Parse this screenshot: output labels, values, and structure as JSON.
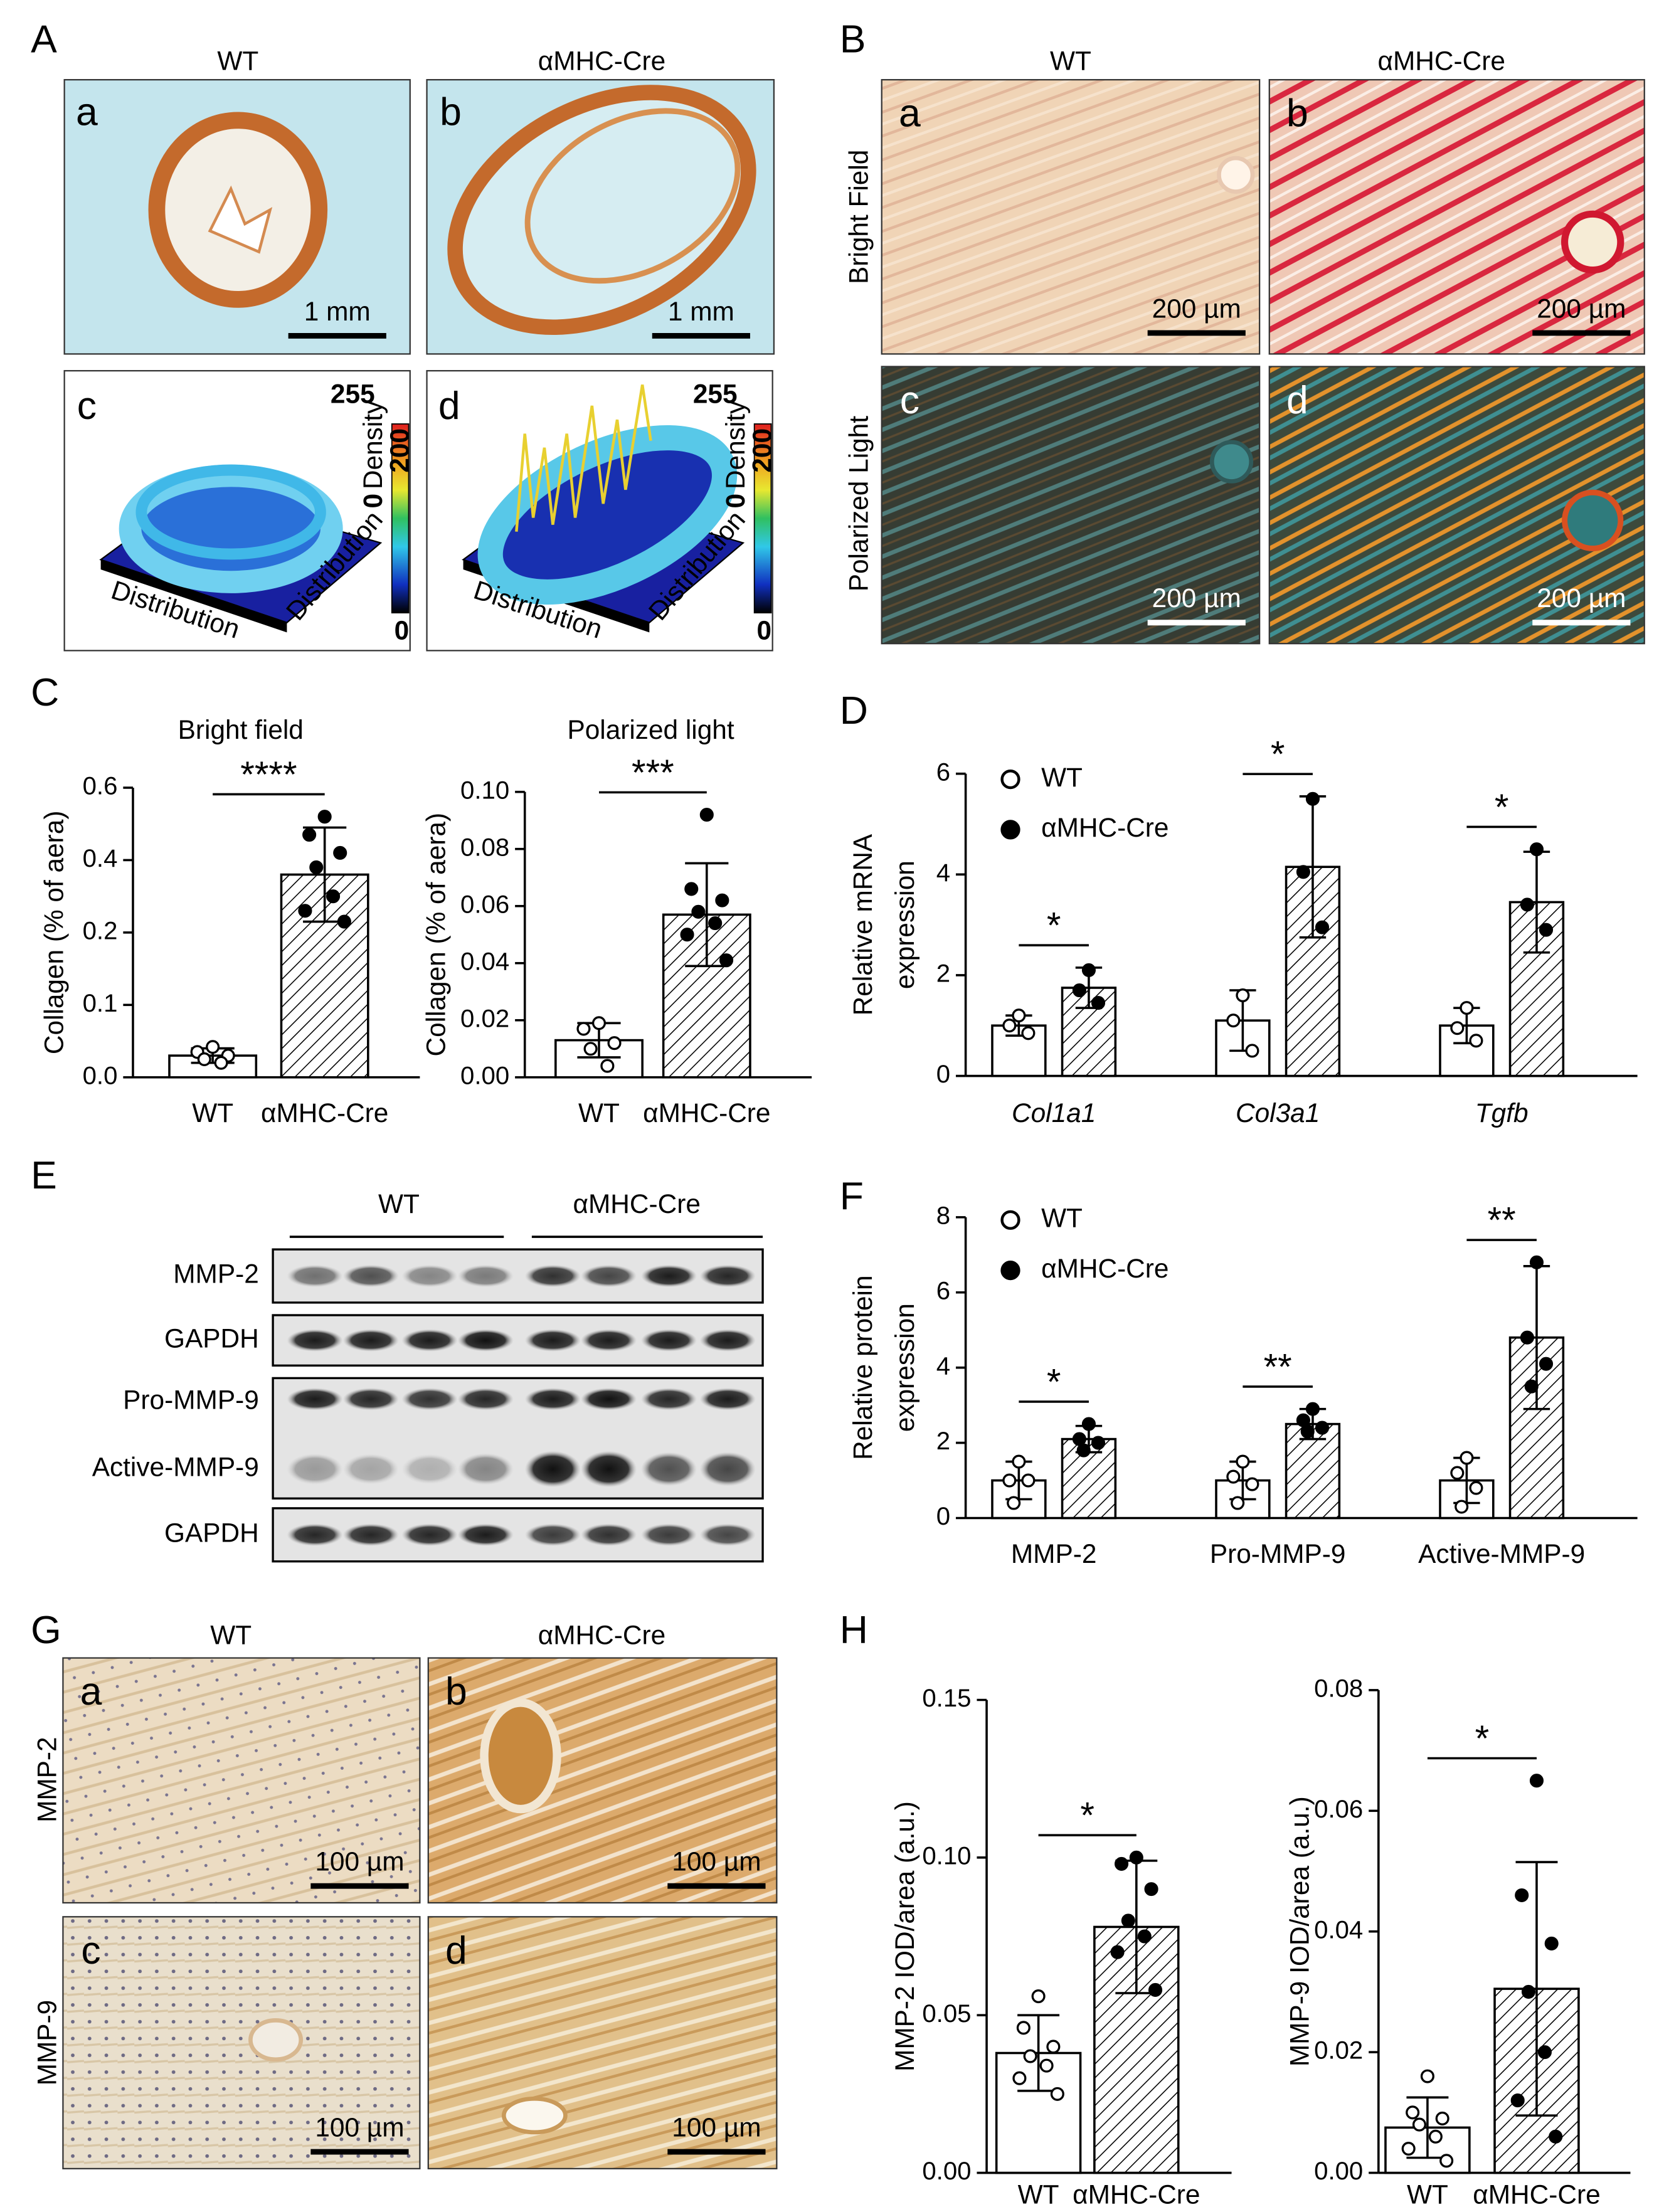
{
  "figure": {
    "panel_labels": [
      "A",
      "B",
      "C",
      "D",
      "E",
      "F",
      "G",
      "H"
    ],
    "A": {
      "columns": [
        "WT",
        "αMHC-Cre"
      ],
      "sublabels": [
        "a",
        "b",
        "c",
        "d"
      ],
      "scale_bar": "1 mm",
      "plot_texts": {
        "max": "255",
        "axis": "Density",
        "bar_max": "200",
        "axis_zero": "0",
        "bar_zero": "0",
        "x_axis": "Distribution",
        "z_axis": "Distribution"
      }
    },
    "B": {
      "columns": [
        "WT",
        "αMHC-Cre"
      ],
      "rows": [
        "Bright Field",
        "Polarized Light"
      ],
      "sublabels": [
        "a",
        "b",
        "c",
        "d"
      ],
      "scale_bar": "200 µm"
    },
    "E": {
      "groups": [
        "WT",
        "αMHC-Cre"
      ],
      "rows": [
        "MMP-2",
        "GAPDH",
        "Pro-MMP-9",
        "Active-MMP-9",
        "GAPDH"
      ]
    },
    "G": {
      "columns": [
        "WT",
        "αMHC-Cre"
      ],
      "rows": [
        "MMP-2",
        "MMP-9"
      ],
      "sublabels": [
        "a",
        "b",
        "c",
        "d"
      ],
      "scale_bar": "100 µm"
    }
  },
  "chart_data": [
    {
      "type": "bar",
      "title": "Bright field",
      "y_label": "Collagen (% of aera)",
      "categories": [
        "WT",
        "αMHC-Cre"
      ],
      "values": [
        0.03,
        0.36
      ],
      "errors": [
        0.01,
        0.13
      ],
      "points": [
        [
          0.042,
          0.035,
          0.03,
          0.025,
          0.02
        ],
        [
          0.52,
          0.47,
          0.42,
          0.38,
          0.3,
          0.26,
          0.23
        ]
      ],
      "styles": [
        "open",
        "hatched"
      ],
      "significance": "****",
      "ylim": [
        0,
        0.6
      ],
      "yticks": [
        {
          "value": 0,
          "label": "0.0"
        },
        0.1,
        0.2,
        0.4,
        0.6
      ],
      "yscale": "segmented"
    },
    {
      "type": "bar",
      "title": "Polarized light",
      "y_label": "Collagen (% of aera)",
      "categories": [
        "WT",
        "αMHC-Cre"
      ],
      "values": [
        0.013,
        0.057
      ],
      "errors": [
        0.006,
        0.018
      ],
      "points": [
        [
          0.019,
          0.017,
          0.012,
          0.01,
          0.004
        ],
        [
          0.092,
          0.066,
          0.062,
          0.058,
          0.054,
          0.05,
          0.041
        ]
      ],
      "styles": [
        "open",
        "hatched"
      ],
      "significance": "***",
      "ylim": [
        0,
        0.1
      ],
      "yticks": [
        {
          "value": 0,
          "label": "0.00"
        },
        0.02,
        0.04,
        0.06,
        0.08,
        {
          "value": 0.1,
          "label": "0.10"
        }
      ]
    },
    {
      "type": "bar",
      "y_label": [
        "Relative mRNA",
        "expression"
      ],
      "categories": [
        "Col1a1",
        "Col3a1",
        "Tgfb"
      ],
      "category_style": "italic",
      "series": [
        {
          "name": "WT",
          "style": "open",
          "values": [
            1,
            1.1,
            1
          ],
          "errors": [
            0.2,
            0.6,
            0.35
          ],
          "points": [
            [
              1.2,
              1.0,
              0.85
            ],
            [
              1.6,
              1.1,
              0.5
            ],
            [
              1.35,
              0.95,
              0.7
            ]
          ]
        },
        {
          "name": "αMHC-Cre",
          "style": "hatched",
          "values": [
            1.75,
            4.15,
            3.45
          ],
          "errors": [
            0.4,
            1.4,
            1.0
          ],
          "points": [
            [
              2.1,
              1.7,
              1.45
            ],
            [
              5.5,
              4.05,
              2.95
            ],
            [
              4.5,
              3.4,
              2.9
            ]
          ]
        }
      ],
      "significance": [
        "*",
        "*",
        "*"
      ],
      "ylim": [
        0,
        6
      ],
      "yticks": [
        0,
        2,
        4,
        6
      ]
    },
    {
      "type": "bar",
      "y_label": [
        "Relative protein",
        "expression"
      ],
      "categories": [
        "MMP-2",
        "Pro-MMP-9",
        "Active-MMP-9"
      ],
      "series": [
        {
          "name": "WT",
          "style": "open",
          "values": [
            1,
            1,
            1
          ],
          "errors": [
            0.5,
            0.5,
            0.6
          ],
          "points": [
            [
              1.5,
              1.0,
              1.0,
              0.4
            ],
            [
              1.5,
              1.1,
              0.9,
              0.4
            ],
            [
              1.6,
              1.2,
              0.8,
              0.3
            ]
          ]
        },
        {
          "name": "αMHC-Cre",
          "style": "hatched",
          "values": [
            2.1,
            2.5,
            4.8
          ],
          "errors": [
            0.35,
            0.4,
            1.9
          ],
          "points": [
            [
              2.5,
              2.1,
              2.0,
              1.8
            ],
            [
              2.9,
              2.6,
              2.4,
              2.3
            ],
            [
              6.8,
              4.8,
              4.1,
              3.5
            ]
          ]
        }
      ],
      "significance": [
        "*",
        "**",
        "**"
      ],
      "ylim": [
        0,
        8
      ],
      "yticks": [
        0,
        2,
        4,
        6,
        8
      ]
    },
    {
      "type": "bar",
      "y_label": "MMP-2 IOD/area (a.u.)",
      "categories": [
        "WT",
        "αMHC-Cre"
      ],
      "values": [
        0.038,
        0.078
      ],
      "errors": [
        0.012,
        0.021
      ],
      "points": [
        [
          0.056,
          0.046,
          0.04,
          0.037,
          0.034,
          0.03,
          0.025
        ],
        [
          0.1,
          0.098,
          0.09,
          0.08,
          0.075,
          0.07,
          0.058
        ]
      ],
      "styles": [
        "open",
        "hatched"
      ],
      "significance": "*",
      "ylim": [
        0,
        0.15
      ],
      "yticks": [
        {
          "value": 0,
          "label": "0.00"
        },
        0.05,
        {
          "value": 0.1,
          "label": "0.10"
        },
        0.15
      ]
    },
    {
      "type": "bar",
      "y_label": "MMP-9 IOD/area (a.u.)",
      "categories": [
        "WT",
        "αMHC-Cre"
      ],
      "values": [
        0.0075,
        0.0305
      ],
      "errors": [
        0.005,
        0.021
      ],
      "points": [
        [
          0.016,
          0.01,
          0.009,
          0.008,
          0.006,
          0.004,
          0.002
        ],
        [
          0.065,
          0.046,
          0.038,
          0.03,
          0.02,
          0.012,
          0.006
        ]
      ],
      "styles": [
        "open",
        "hatched"
      ],
      "significance": "*",
      "ylim": [
        0,
        0.08
      ],
      "yticks": [
        {
          "value": 0,
          "label": "0.00"
        },
        0.02,
        0.04,
        0.06,
        0.08
      ]
    }
  ]
}
